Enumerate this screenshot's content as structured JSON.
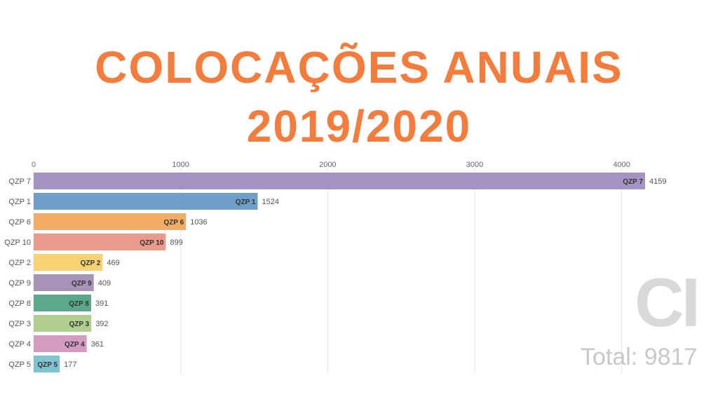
{
  "header": {
    "title_line1": "COLOCAÇÕES ANUAIS",
    "title_line2": "2019/2020",
    "title_color": "#f47c3c"
  },
  "watermark": {
    "letters": "CI",
    "total_label": "Total:",
    "total_value": "9817"
  },
  "chart_data": {
    "type": "bar",
    "orientation": "horizontal",
    "categories": [
      "QZP 7",
      "QZP 1",
      "QZP 6",
      "QZP 10",
      "QZP 2",
      "QZP 9",
      "QZP 8",
      "QZP 3",
      "QZP 4",
      "QZP 5"
    ],
    "values": [
      4159,
      1524,
      1036,
      899,
      469,
      409,
      391,
      392,
      361,
      177
    ],
    "colors": [
      "#a394c3",
      "#6f9ec8",
      "#f2ae64",
      "#e99a8d",
      "#f7d374",
      "#a693b7",
      "#5aa98a",
      "#b0cf8e",
      "#d39bc2",
      "#7fc3d1"
    ],
    "x_ticks": [
      0,
      1000,
      2000,
      3000,
      4000
    ],
    "xlim": [
      0,
      4159
    ],
    "grid": true,
    "axis_position": "top"
  }
}
